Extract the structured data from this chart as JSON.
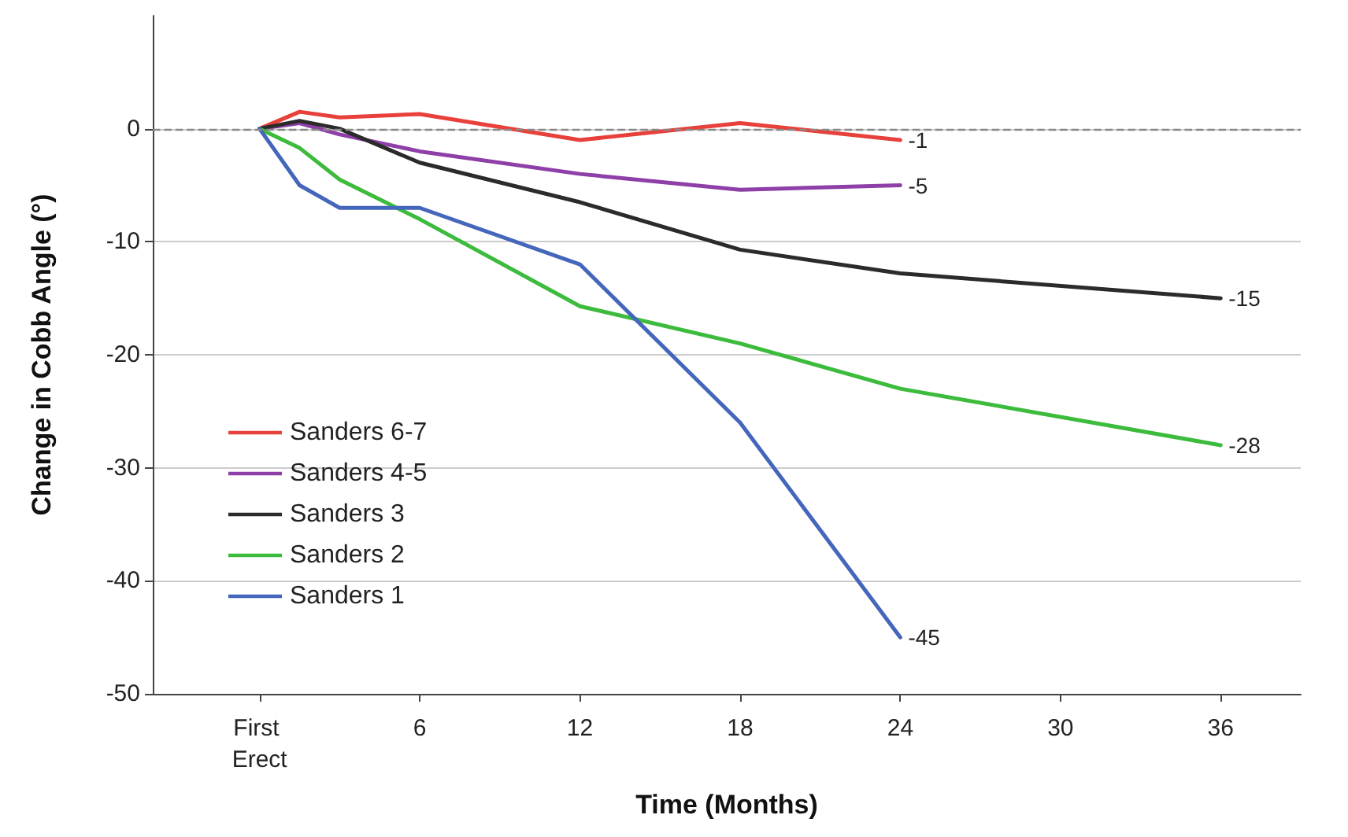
{
  "chart_data": {
    "type": "line",
    "xlabel": "Time (Months)",
    "ylabel": "Change in Cobb Angle (°)",
    "xlim": [
      -4,
      39
    ],
    "xticks": [
      {
        "value": 0,
        "label": "First Erect"
      },
      6,
      12,
      18,
      24,
      30,
      36
    ],
    "ylim": [
      -50,
      10
    ],
    "yticks": [
      -50,
      -40,
      -30,
      -20,
      -10,
      0
    ],
    "grid": "y",
    "legend": "bottom left",
    "marker": "none",
    "line_style": "solid",
    "ref_lines": [
      {
        "axis": "y",
        "value": 0,
        "color": "#888888",
        "line_style": "dashed"
      }
    ],
    "series": [
      {
        "name": "Sanders 6-7",
        "color": "#e8403a",
        "x": [
          0,
          1.5,
          3,
          6,
          12,
          18,
          24
        ],
        "values": [
          0,
          1.5,
          1,
          1.3,
          -1,
          0.5,
          -1
        ],
        "value_labels": [
          null,
          null,
          null,
          null,
          null,
          null,
          "-1"
        ]
      },
      {
        "name": "Sanders 4-5",
        "color": "#8e3fa8",
        "x": [
          0,
          1.5,
          3,
          6,
          12,
          18,
          24
        ],
        "values": [
          0,
          0.5,
          -0.5,
          -2,
          -4,
          -5.4,
          -5
        ],
        "value_labels": [
          null,
          null,
          null,
          null,
          null,
          null,
          "-5"
        ]
      },
      {
        "name": "Sanders 3",
        "color": "#2b2b2b",
        "x": [
          0,
          1.5,
          3,
          6,
          12,
          18,
          24,
          36
        ],
        "values": [
          0,
          0.7,
          0,
          -3,
          -6.5,
          -10.7,
          -12.8,
          -15
        ],
        "value_labels": [
          null,
          null,
          null,
          null,
          null,
          null,
          null,
          "-15"
        ]
      },
      {
        "name": "Sanders 2",
        "color": "#3dbb3d",
        "x": [
          0,
          1.5,
          3,
          6,
          12,
          18,
          24,
          36
        ],
        "values": [
          0,
          -1.7,
          -4.5,
          -8,
          -15.7,
          -19,
          -23,
          -28
        ],
        "value_labels": [
          null,
          null,
          null,
          null,
          null,
          null,
          null,
          "-28"
        ]
      },
      {
        "name": "Sanders 1",
        "color": "#4466bb",
        "x": [
          0,
          1.5,
          3,
          6,
          12,
          18,
          24
        ],
        "values": [
          0,
          -5,
          -7,
          -7,
          -12,
          -26,
          -45
        ],
        "value_labels": [
          null,
          null,
          null,
          null,
          null,
          null,
          "-45"
        ]
      }
    ]
  }
}
